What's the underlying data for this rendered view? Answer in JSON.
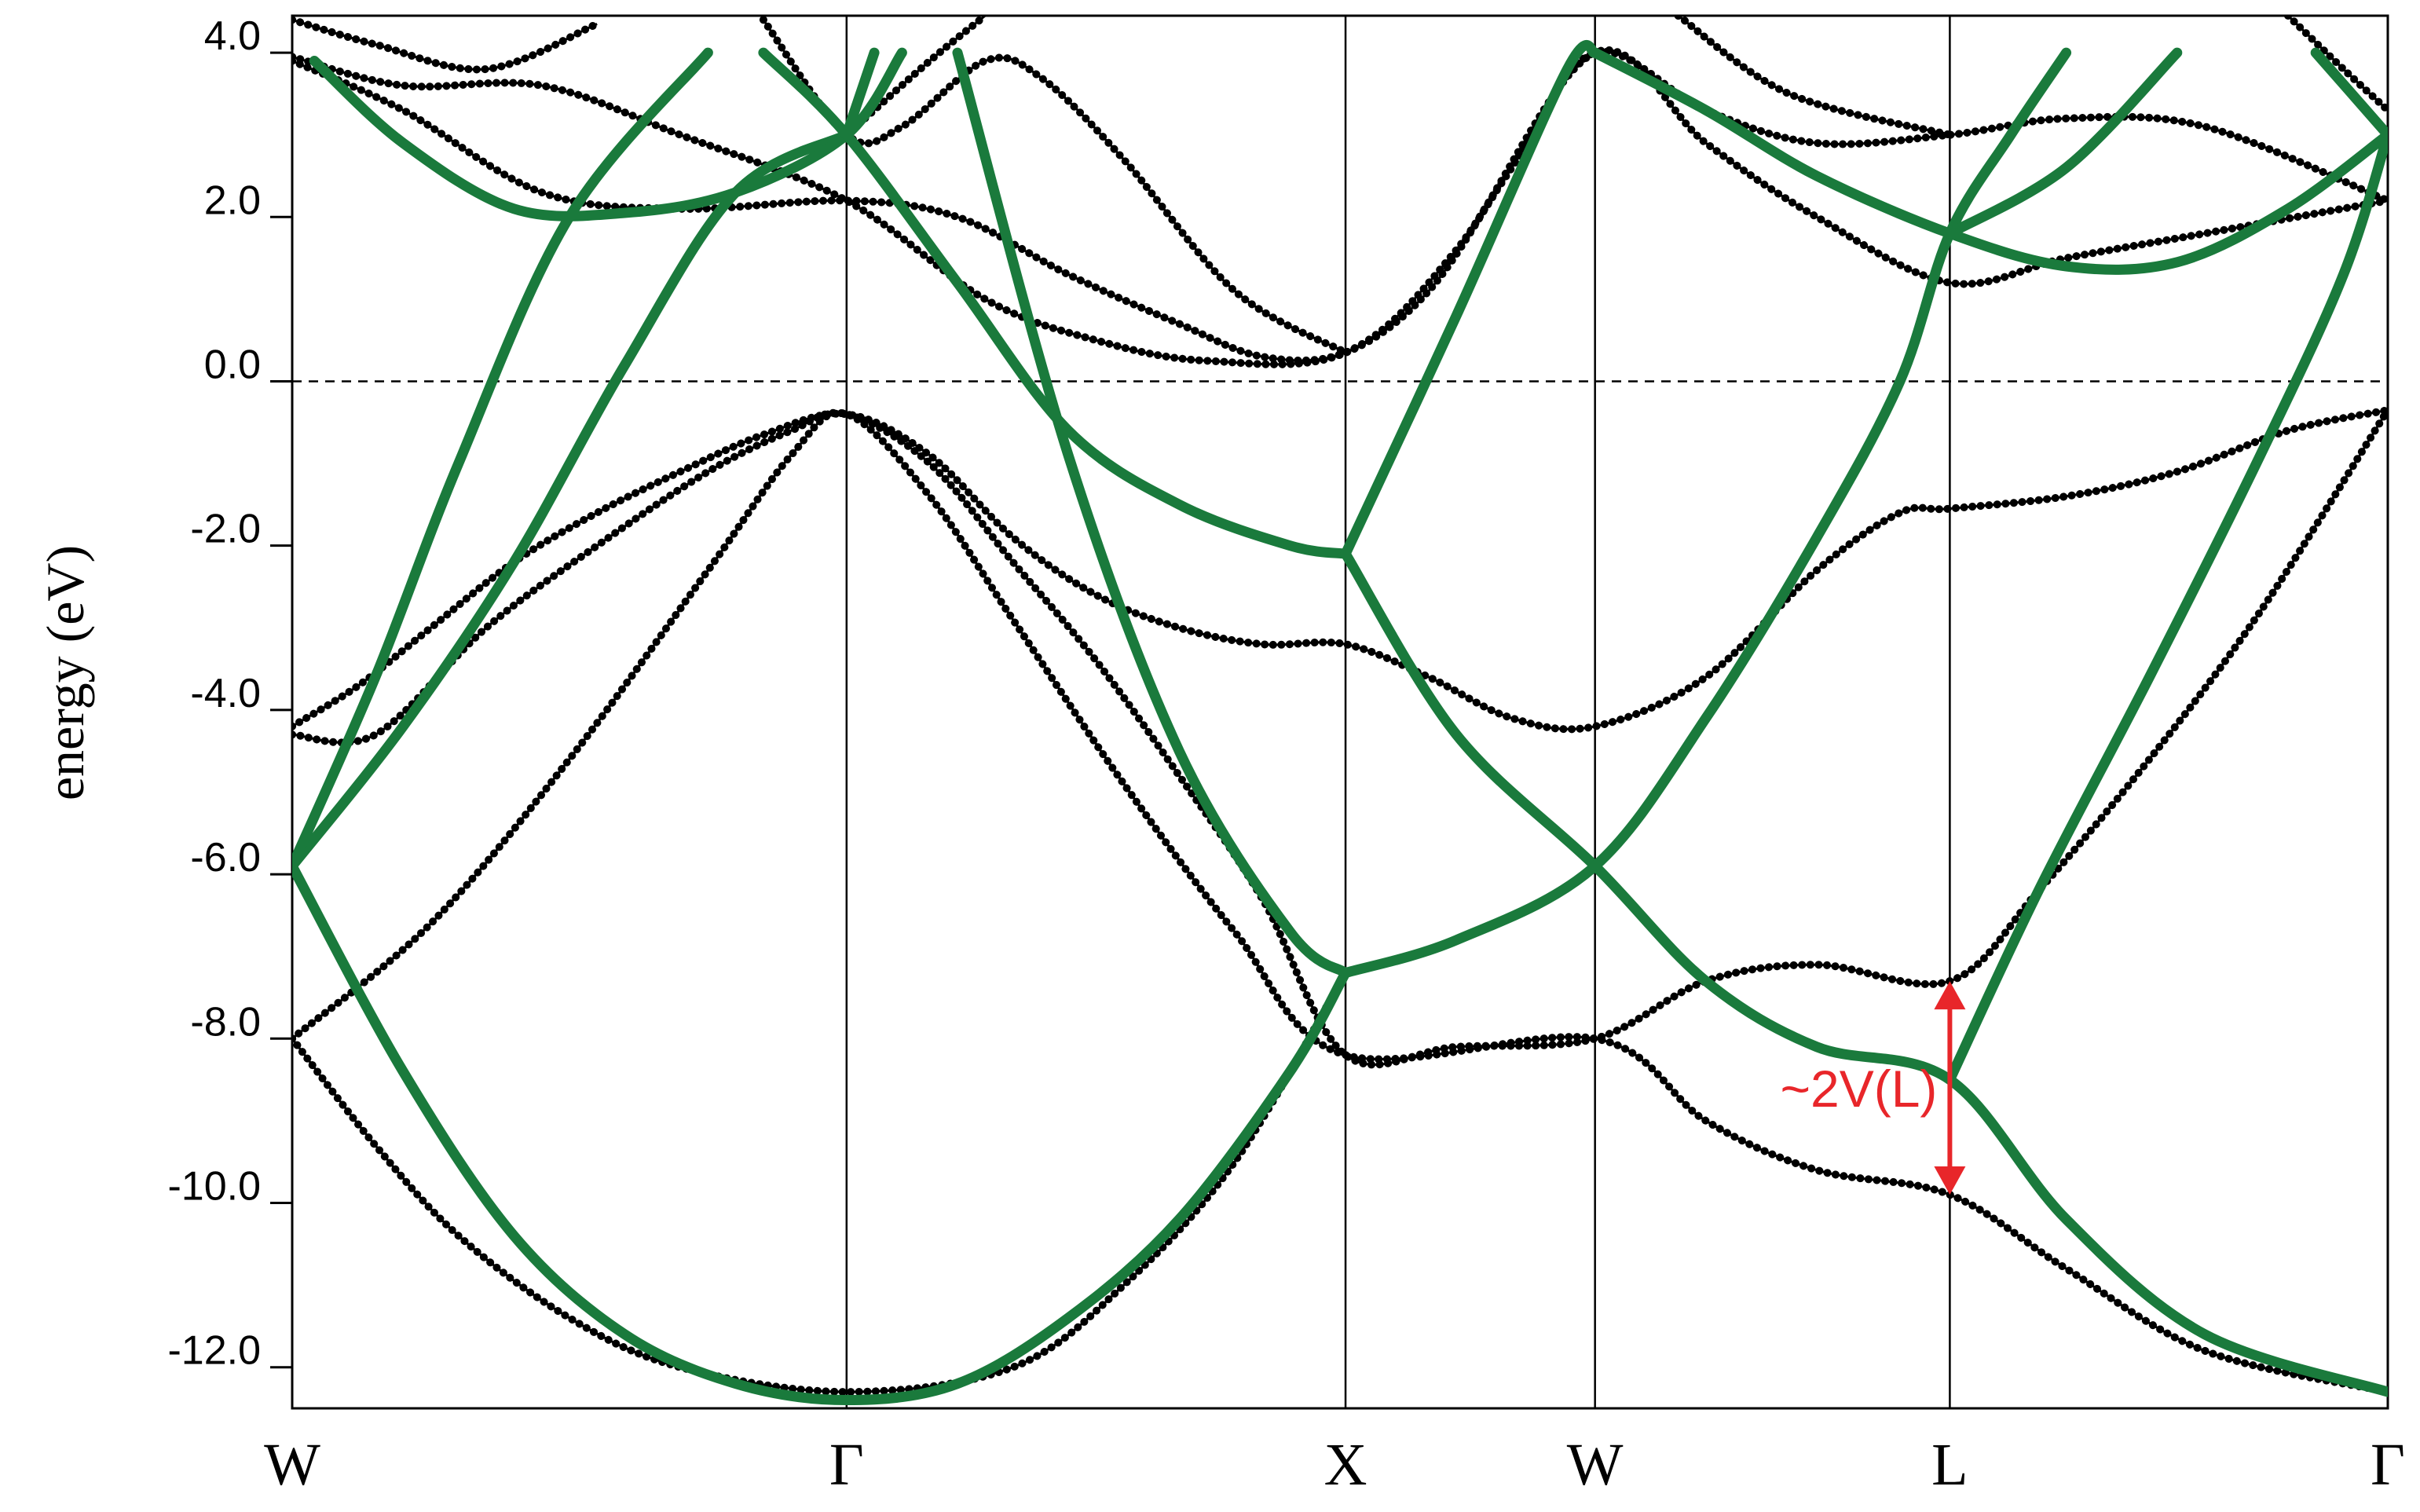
{
  "chart_data": {
    "type": "line",
    "title": "",
    "xlabel": "",
    "ylabel": "energy (eV)",
    "ylim": [
      -12.5,
      4.45
    ],
    "y_ticks": [
      4.0,
      2.0,
      0.0,
      -2.0,
      -4.0,
      -6.0,
      -8.0,
      -10.0,
      -12.0
    ],
    "y_tick_labels": [
      "4.0",
      "2.0",
      "0.0",
      "-2.0",
      "-4.0",
      "-6.0",
      "-8.0",
      "-10.0",
      "-12.0"
    ],
    "x_tick_labels": [
      "W",
      "Γ",
      "X",
      "W",
      "L",
      "Γ"
    ],
    "x_tick_positions": [
      0,
      1.0,
      1.9,
      2.35,
      2.99,
      3.78
    ],
    "fermi_level": 0.0,
    "grid": false,
    "series": [
      {
        "style": "dots",
        "color": "#000000",
        "points": [
          [
            0,
            -4.2
          ],
          [
            0.12,
            -3.7
          ],
          [
            0.25,
            -3.0
          ],
          [
            0.4,
            -2.2
          ],
          [
            0.55,
            -1.6
          ],
          [
            0.7,
            -1.1
          ],
          [
            0.85,
            -0.65
          ],
          [
            1.0,
            -0.4
          ],
          [
            1.15,
            -0.9
          ],
          [
            1.3,
            -1.9
          ],
          [
            1.45,
            -2.6
          ],
          [
            1.6,
            -3.0
          ],
          [
            1.75,
            -3.2
          ],
          [
            1.9,
            -3.2
          ],
          [
            2.05,
            -3.6
          ],
          [
            2.2,
            -4.1
          ],
          [
            2.35,
            -4.2
          ],
          [
            2.55,
            -3.6
          ],
          [
            2.75,
            -2.3
          ],
          [
            2.9,
            -1.6
          ],
          [
            2.99,
            -1.55
          ],
          [
            3.2,
            -1.4
          ],
          [
            3.4,
            -1.1
          ],
          [
            3.6,
            -0.6
          ],
          [
            3.78,
            -0.35
          ]
        ]
      },
      {
        "style": "dots",
        "color": "#000000",
        "points": [
          [
            0,
            -4.3
          ],
          [
            0.15,
            -4.3
          ],
          [
            0.35,
            -3.0
          ],
          [
            0.55,
            -2.0
          ],
          [
            0.75,
            -1.1
          ],
          [
            0.9,
            -0.6
          ],
          [
            1.0,
            -0.4
          ],
          [
            1.15,
            -1.0
          ],
          [
            1.3,
            -2.2
          ],
          [
            1.45,
            -3.4
          ],
          [
            1.6,
            -4.8
          ],
          [
            1.75,
            -6.3
          ],
          [
            1.9,
            -8.2
          ],
          [
            2.1,
            -8.1
          ],
          [
            2.35,
            -8.0
          ],
          [
            2.55,
            -7.3
          ],
          [
            2.75,
            -7.1
          ],
          [
            2.99,
            -7.3
          ],
          [
            3.15,
            -6.2
          ],
          [
            3.35,
            -4.6
          ],
          [
            3.55,
            -2.8
          ],
          [
            3.78,
            -0.35
          ]
        ]
      },
      {
        "style": "dots",
        "color": "#000000",
        "points": [
          [
            0,
            -8.0
          ],
          [
            0.25,
            -6.6
          ],
          [
            0.5,
            -4.6
          ],
          [
            0.75,
            -2.3
          ],
          [
            0.9,
            -0.9
          ],
          [
            1.0,
            -0.4
          ],
          [
            1.15,
            -1.4
          ],
          [
            1.3,
            -2.9
          ],
          [
            1.5,
            -4.9
          ],
          [
            1.7,
            -6.7
          ],
          [
            1.9,
            -8.2
          ],
          [
            2.35,
            -8.0
          ],
          [
            2.55,
            -9.0
          ],
          [
            2.75,
            -9.6
          ],
          [
            2.99,
            -9.9
          ],
          [
            3.2,
            -10.8
          ],
          [
            3.45,
            -11.8
          ],
          [
            3.78,
            -12.3
          ]
        ]
      },
      {
        "style": "dots",
        "color": "#000000",
        "points": [
          [
            0,
            -8.0
          ],
          [
            0.15,
            -9.3
          ],
          [
            0.3,
            -10.4
          ],
          [
            0.5,
            -11.4
          ],
          [
            0.7,
            -12.0
          ],
          [
            1.0,
            -12.3
          ],
          [
            1.3,
            -12.0
          ],
          [
            1.5,
            -11.0
          ],
          [
            1.7,
            -9.5
          ],
          [
            1.9,
            -7.2
          ]
        ]
      },
      {
        "style": "dots",
        "color": "#000000",
        "points": [
          [
            0,
            3.9
          ],
          [
            0.2,
            3.3
          ],
          [
            0.45,
            2.3
          ],
          [
            0.7,
            2.1
          ],
          [
            1.0,
            2.2
          ],
          [
            1.2,
            2.0
          ],
          [
            1.4,
            1.3
          ],
          [
            1.6,
            0.7
          ],
          [
            1.75,
            0.3
          ],
          [
            1.9,
            0.35
          ],
          [
            2.05,
            1.1
          ],
          [
            2.2,
            2.6
          ],
          [
            2.35,
            4.0
          ],
          [
            2.55,
            3.3
          ],
          [
            2.75,
            2.9
          ],
          [
            2.99,
            3.0
          ],
          [
            3.2,
            3.2
          ],
          [
            3.45,
            3.1
          ],
          [
            3.78,
            2.2
          ]
        ]
      },
      {
        "style": "dots",
        "color": "#000000",
        "points": [
          [
            0,
            3.95
          ],
          [
            0.2,
            3.6
          ],
          [
            0.45,
            3.6
          ],
          [
            0.7,
            3.0
          ],
          [
            1.0,
            2.2
          ],
          [
            1.25,
            1.0
          ],
          [
            1.45,
            0.5
          ],
          [
            1.65,
            0.25
          ],
          [
            1.9,
            0.35
          ],
          [
            2.1,
            1.6
          ],
          [
            2.35,
            4.0
          ],
          [
            2.55,
            2.9
          ],
          [
            2.75,
            2.0
          ],
          [
            2.99,
            1.2
          ],
          [
            3.2,
            1.5
          ],
          [
            3.45,
            1.8
          ],
          [
            3.78,
            2.2
          ]
        ]
      },
      {
        "style": "dots",
        "color": "#000000",
        "points": [
          [
            0.0,
            4.4
          ],
          [
            0.15,
            4.1
          ],
          [
            0.35,
            3.8
          ],
          [
            0.55,
            4.35
          ]
        ]
      },
      {
        "style": "dots",
        "color": "#000000",
        "points": [
          [
            0.85,
            4.4
          ],
          [
            1.0,
            3.0
          ],
          [
            1.1,
            3.1
          ],
          [
            1.25,
            3.9
          ],
          [
            1.35,
            3.7
          ],
          [
            1.5,
            2.7
          ],
          [
            1.7,
            1.1
          ],
          [
            1.9,
            0.35
          ]
        ]
      },
      {
        "style": "dots",
        "color": "#000000",
        "points": [
          [
            1.0,
            3.0
          ],
          [
            1.15,
            3.9
          ],
          [
            1.25,
            4.45
          ]
        ]
      },
      {
        "style": "dots",
        "color": "#000000",
        "points": [
          [
            2.5,
            4.45
          ],
          [
            2.7,
            3.5
          ],
          [
            2.99,
            3.0
          ]
        ]
      },
      {
        "style": "dots",
        "color": "#000000",
        "points": [
          [
            3.6,
            4.45
          ],
          [
            3.7,
            3.8
          ],
          [
            3.78,
            3.3
          ]
        ]
      },
      {
        "style": "line",
        "color": "#1a7a3c",
        "points": [
          [
            0,
            -5.9
          ],
          [
            0.2,
            -4.2
          ],
          [
            0.4,
            -2.2
          ],
          [
            0.6,
            0.2
          ],
          [
            0.8,
            2.3
          ],
          [
            1.0,
            3.0
          ]
        ]
      },
      {
        "style": "line",
        "color": "#1a7a3c",
        "points": [
          [
            0,
            -5.9
          ],
          [
            0.15,
            -3.6
          ],
          [
            0.3,
            -1.0
          ],
          [
            0.5,
            2.0
          ],
          [
            0.75,
            4.0
          ]
        ]
      },
      {
        "style": "line",
        "color": "#1a7a3c",
        "points": [
          [
            0,
            -5.9
          ],
          [
            0.2,
            -8.4
          ],
          [
            0.4,
            -10.4
          ],
          [
            0.6,
            -11.6
          ],
          [
            0.8,
            -12.2
          ],
          [
            1.0,
            -12.4
          ],
          [
            1.2,
            -12.2
          ],
          [
            1.4,
            -11.4
          ],
          [
            1.6,
            -10.2
          ],
          [
            1.8,
            -8.4
          ],
          [
            1.9,
            -7.2
          ]
        ]
      },
      {
        "style": "line",
        "color": "#1a7a3c",
        "points": [
          [
            0.04,
            3.9
          ],
          [
            0.2,
            2.9
          ],
          [
            0.4,
            2.1
          ],
          [
            0.6,
            2.05
          ],
          [
            0.8,
            2.3
          ],
          [
            1.0,
            3.0
          ],
          [
            1.1,
            4.0
          ]
        ]
      },
      {
        "style": "line",
        "color": "#1a7a3c",
        "points": [
          [
            0.85,
            4.0
          ],
          [
            1.0,
            3.0
          ],
          [
            1.2,
            1.2
          ],
          [
            1.4,
            -0.6
          ],
          [
            1.6,
            -1.5
          ],
          [
            1.8,
            -2.0
          ],
          [
            1.9,
            -2.1
          ]
        ]
      },
      {
        "style": "line",
        "color": "#1a7a3c",
        "points": [
          [
            1.0,
            3.0
          ],
          [
            1.05,
            4.0
          ]
        ]
      },
      {
        "style": "line",
        "color": "#1a7a3c",
        "points": [
          [
            1.2,
            4.0
          ],
          [
            1.4,
            -0.9
          ],
          [
            1.6,
            -4.5
          ],
          [
            1.8,
            -6.7
          ],
          [
            1.9,
            -7.2
          ]
        ]
      },
      {
        "style": "line",
        "color": "#1a7a3c",
        "points": [
          [
            1.9,
            -2.1
          ],
          [
            2.1,
            0.8
          ],
          [
            2.3,
            3.8
          ],
          [
            2.35,
            4.0
          ]
        ]
      },
      {
        "style": "line",
        "color": "#1a7a3c",
        "points": [
          [
            1.9,
            -2.1
          ],
          [
            2.1,
            -4.3
          ],
          [
            2.35,
            -5.9
          ],
          [
            2.55,
            -7.3
          ],
          [
            2.75,
            -8.1
          ],
          [
            2.99,
            -8.5
          ],
          [
            3.2,
            -10.2
          ],
          [
            3.45,
            -11.6
          ],
          [
            3.78,
            -12.3
          ]
        ]
      },
      {
        "style": "line",
        "color": "#1a7a3c",
        "points": [
          [
            1.9,
            -7.2
          ],
          [
            2.1,
            -6.8
          ],
          [
            2.35,
            -5.9
          ],
          [
            2.55,
            -4.1
          ],
          [
            2.75,
            -1.9
          ],
          [
            2.9,
            0.0
          ],
          [
            2.99,
            1.8
          ],
          [
            3.1,
            3.0
          ],
          [
            3.2,
            4.0
          ]
        ]
      },
      {
        "style": "line",
        "color": "#1a7a3c",
        "points": [
          [
            2.35,
            4.0
          ],
          [
            2.55,
            3.3
          ],
          [
            2.75,
            2.5
          ],
          [
            2.99,
            1.8
          ],
          [
            3.2,
            1.4
          ],
          [
            3.4,
            1.45
          ],
          [
            3.6,
            2.1
          ],
          [
            3.78,
            3.0
          ]
        ]
      },
      {
        "style": "line",
        "color": "#1a7a3c",
        "points": [
          [
            2.99,
            1.8
          ],
          [
            3.2,
            2.6
          ],
          [
            3.4,
            4.0
          ]
        ]
      },
      {
        "style": "line",
        "color": "#1a7a3c",
        "points": [
          [
            2.99,
            -8.5
          ],
          [
            3.15,
            -6.2
          ],
          [
            3.35,
            -3.6
          ],
          [
            3.55,
            -0.9
          ],
          [
            3.7,
            1.3
          ],
          [
            3.78,
            3.0
          ]
        ]
      },
      {
        "style": "line",
        "color": "#1a7a3c",
        "points": [
          [
            3.65,
            4.0
          ],
          [
            3.78,
            3.0
          ]
        ]
      }
    ],
    "annotations": [
      {
        "text": "~2V(L)",
        "color": "#e8262a",
        "x": 2.99,
        "y_from": -7.3,
        "y_to": -9.9
      }
    ]
  }
}
